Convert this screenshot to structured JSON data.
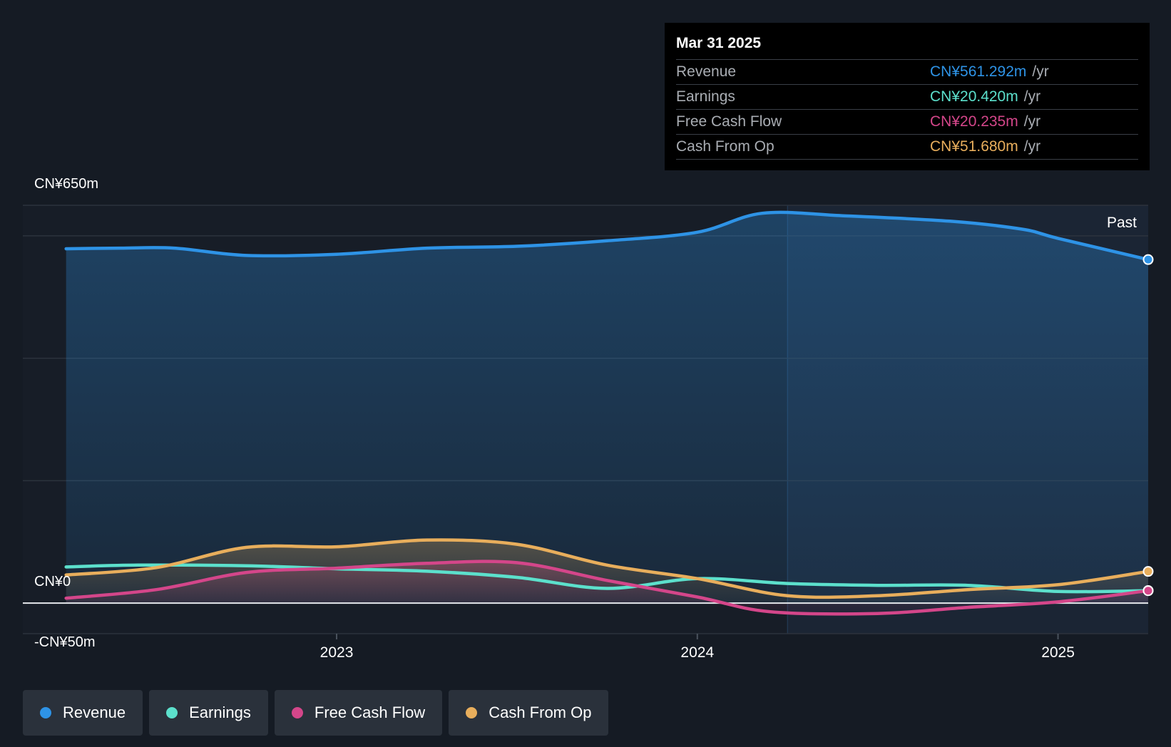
{
  "tooltip": {
    "date": "Mar 31 2025",
    "rows": [
      {
        "label": "Revenue",
        "value": "CN¥561.292m",
        "unit": "/yr",
        "color": "#2e93e6"
      },
      {
        "label": "Earnings",
        "value": "CN¥20.420m",
        "unit": "/yr",
        "color": "#5ce0cc"
      },
      {
        "label": "Free Cash Flow",
        "value": "CN¥20.235m",
        "unit": "/yr",
        "color": "#d4468a"
      },
      {
        "label": "Cash From Op",
        "value": "CN¥51.680m",
        "unit": "/yr",
        "color": "#e8ae5c"
      }
    ]
  },
  "legend": [
    {
      "label": "Revenue",
      "color": "#2e93e6"
    },
    {
      "label": "Earnings",
      "color": "#5ce0cc"
    },
    {
      "label": "Free Cash Flow",
      "color": "#d4468a"
    },
    {
      "label": "Cash From Op",
      "color": "#e8ae5c"
    }
  ],
  "chart_data": {
    "type": "line",
    "past_label": "Past",
    "y_tick_labels": [
      "CN¥650m",
      "CN¥0",
      "-CN¥50m"
    ],
    "ylim": [
      -50,
      650
    ],
    "x_ticks": [
      {
        "label": "2023",
        "x": 2023.0
      },
      {
        "label": "2024",
        "x": 2024.0
      },
      {
        "label": "2025",
        "x": 2025.0
      }
    ],
    "xlim": [
      2022.13,
      2025.25
    ],
    "past_start_x": 2024.25,
    "grid": true,
    "series": [
      {
        "name": "Revenue",
        "color": "#2e93e6",
        "fill": true,
        "points": [
          [
            2022.25,
            579
          ],
          [
            2022.4,
            580
          ],
          [
            2022.55,
            580
          ],
          [
            2022.75,
            568
          ],
          [
            2023.0,
            570
          ],
          [
            2023.25,
            580
          ],
          [
            2023.5,
            583
          ],
          [
            2023.75,
            592
          ],
          [
            2024.0,
            606
          ],
          [
            2024.18,
            637
          ],
          [
            2024.4,
            633
          ],
          [
            2024.7,
            624
          ],
          [
            2024.9,
            611
          ],
          [
            2025.0,
            596
          ],
          [
            2025.25,
            561.3
          ]
        ]
      },
      {
        "name": "Earnings",
        "color": "#5ce0cc",
        "fill": false,
        "points": [
          [
            2022.25,
            59
          ],
          [
            2022.45,
            62
          ],
          [
            2022.75,
            61
          ],
          [
            2023.0,
            56
          ],
          [
            2023.25,
            52
          ],
          [
            2023.5,
            42
          ],
          [
            2023.75,
            24
          ],
          [
            2024.0,
            40
          ],
          [
            2024.25,
            32
          ],
          [
            2024.5,
            29
          ],
          [
            2024.75,
            29
          ],
          [
            2025.0,
            19
          ],
          [
            2025.25,
            20.4
          ]
        ]
      },
      {
        "name": "Free Cash Flow",
        "color": "#d4468a",
        "fill": true,
        "points": [
          [
            2022.25,
            8
          ],
          [
            2022.5,
            22
          ],
          [
            2022.75,
            50
          ],
          [
            2023.0,
            57
          ],
          [
            2023.25,
            65
          ],
          [
            2023.5,
            66
          ],
          [
            2023.75,
            37
          ],
          [
            2024.0,
            10
          ],
          [
            2024.2,
            -14
          ],
          [
            2024.5,
            -17
          ],
          [
            2024.75,
            -7
          ],
          [
            2025.0,
            2
          ],
          [
            2025.25,
            20.2
          ]
        ]
      },
      {
        "name": "Cash From Op",
        "color": "#e8ae5c",
        "fill": true,
        "points": [
          [
            2022.25,
            46
          ],
          [
            2022.5,
            58
          ],
          [
            2022.75,
            91
          ],
          [
            2023.0,
            92
          ],
          [
            2023.25,
            103
          ],
          [
            2023.5,
            96
          ],
          [
            2023.75,
            62
          ],
          [
            2024.0,
            40
          ],
          [
            2024.25,
            12
          ],
          [
            2024.5,
            12
          ],
          [
            2024.75,
            22
          ],
          [
            2025.0,
            30
          ],
          [
            2025.25,
            51.7
          ]
        ]
      }
    ]
  }
}
